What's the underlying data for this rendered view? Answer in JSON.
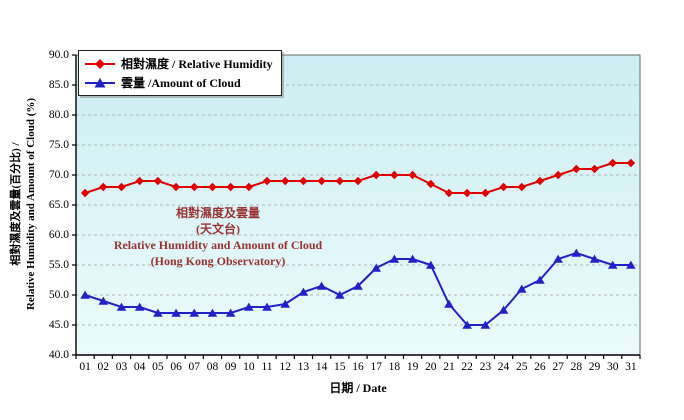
{
  "chart_data": {
    "type": "line",
    "categories": [
      "01",
      "02",
      "03",
      "04",
      "05",
      "06",
      "07",
      "08",
      "09",
      "10",
      "11",
      "12",
      "13",
      "14",
      "15",
      "16",
      "17",
      "18",
      "19",
      "20",
      "21",
      "22",
      "23",
      "24",
      "25",
      "26",
      "27",
      "28",
      "29",
      "30",
      "31"
    ],
    "series": [
      {
        "name": "相對濕度 / Relative Humidity",
        "marker": "diamond",
        "color": "#dd0000",
        "values": [
          67,
          68,
          68,
          69,
          69,
          68,
          68,
          68,
          68,
          68,
          69,
          69,
          69,
          69,
          69,
          69,
          70,
          70,
          70,
          68.5,
          67,
          67,
          67,
          68,
          68,
          69,
          70,
          71,
          71,
          72,
          72
        ]
      },
      {
        "name": "雲量 /Amount of Cloud",
        "marker": "triangle",
        "color": "#2121c8",
        "values": [
          50,
          49,
          48,
          48,
          47,
          47,
          47,
          47,
          47,
          48,
          48,
          48.5,
          50.5,
          51.5,
          50,
          51.5,
          54.5,
          56,
          56,
          55,
          48.5,
          45,
          45,
          47.5,
          51,
          52.5,
          56,
          57,
          56,
          55,
          55
        ]
      }
    ],
    "xlabel": "日期 / Date",
    "ylabel_lines": [
      "相對濕度及雲量(百分比) /",
      "Relative Humidity and Amount of Cloud (%)"
    ],
    "ylim": [
      40,
      90
    ],
    "ytick_step": 5,
    "ytick_labels": [
      "40.0",
      "45.0",
      "50.0",
      "55.0",
      "60.0",
      "65.0",
      "70.0",
      "75.0",
      "80.0",
      "85.0",
      "90.0"
    ],
    "grid": "horizontal-dashed",
    "legend_position": "top-left-inside",
    "annotation": {
      "lines": [
        "相對濕度及雲量",
        "(天文台)",
        "Relative Humidity and Amount of Cloud",
        "(Hong Kong Observatory)"
      ],
      "color": "#993333"
    },
    "colors": {
      "plot_bg_top": "#cbeef2",
      "plot_bg_bottom": "#ecfbfc",
      "gridline": "#b5b5b5",
      "axis": "#000000",
      "plot_border": "#6a6a6a"
    }
  }
}
